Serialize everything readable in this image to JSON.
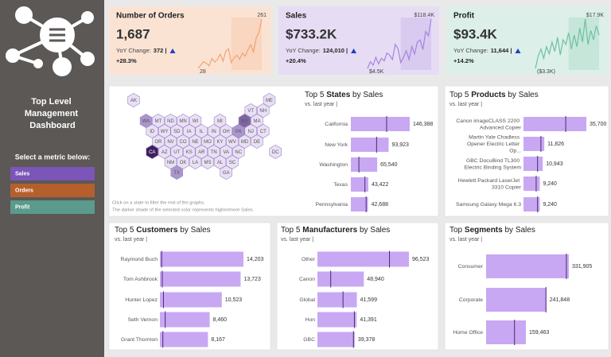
{
  "sidebar": {
    "title": "Top Level Management Dashboard",
    "prompt": "Select a metric below:",
    "buttons": [
      {
        "label": "Sales",
        "color": "#7b55b8"
      },
      {
        "label": "Orders",
        "color": "#b5602c"
      },
      {
        "label": "Profit",
        "color": "#5a9b8b"
      }
    ]
  },
  "kpis": [
    {
      "title": "Number of Orders",
      "value": "1,687",
      "yoy_label": "YoY Change:",
      "yoy_value": "372 |",
      "change": "+28.3%",
      "background": "#fbe3d4",
      "sparkline": {
        "type": "line",
        "color": "#f2a36f",
        "values": [
          28,
          45,
          60,
          52,
          40,
          75,
          58,
          70,
          95,
          62,
          110,
          120,
          55,
          78,
          90,
          70,
          100,
          85,
          115,
          140,
          105,
          170,
          200,
          261
        ]
      }
    },
    {
      "title": "Sales",
      "value": "$733.2K",
      "yoy_label": "YoY Change:",
      "yoy_value": "124,010 |",
      "change": "+20.4%",
      "background": "#e6dcf4",
      "sparkline": {
        "type": "line",
        "color": "#a684df",
        "values": [
          4500,
          20000,
          12000,
          30000,
          15000,
          28000,
          22000,
          40000,
          35000,
          25000,
          60000,
          50000,
          18000,
          30000,
          45000,
          25000,
          55000,
          38000,
          65000,
          70000,
          48000,
          90000,
          80000,
          118400
        ],
        "value_labels": [
          "$4.5K",
          null,
          null,
          null,
          null,
          null,
          null,
          null,
          null,
          null,
          null,
          null,
          null,
          null,
          null,
          null,
          null,
          null,
          null,
          null,
          null,
          null,
          null,
          "$118.4K"
        ]
      }
    },
    {
      "title": "Profit",
      "value": "$93.4K",
      "yoy_label": "YoY Change:",
      "yoy_value": "11,644 |",
      "change": "+14.2%",
      "background": "#dcefe8",
      "sparkline": {
        "type": "line",
        "color": "#6cc2a2",
        "values": [
          -3300,
          2000,
          5000,
          1000,
          6000,
          3000,
          8000,
          4000,
          10000,
          2500,
          9000,
          7000,
          12000,
          5000,
          11000,
          6000,
          14000,
          8000,
          17900,
          7000,
          13000,
          9000,
          15000,
          11000
        ],
        "value_labels": [
          "($3.3K)",
          null,
          null,
          null,
          null,
          null,
          null,
          null,
          null,
          null,
          null,
          null,
          null,
          null,
          null,
          null,
          null,
          null,
          "$17.9K",
          null,
          null,
          null,
          null,
          null
        ]
      }
    }
  ],
  "map": {
    "rows": [
      [
        "AK",
        null,
        null,
        null,
        null,
        null,
        null,
        null,
        null,
        null,
        null,
        "ME"
      ],
      [
        null,
        null,
        null,
        null,
        null,
        null,
        null,
        null,
        null,
        "VT",
        "NH"
      ],
      [
        null,
        "WA",
        "MT",
        "ND",
        "MN",
        "WI",
        null,
        "MI",
        null,
        "NY",
        "MA"
      ],
      [
        null,
        "ID",
        "WY",
        "SD",
        "IA",
        "IL",
        "IN",
        "OH",
        "PA",
        "NJ",
        "CT"
      ],
      [
        null,
        null,
        "OR",
        "NV",
        "CO",
        "NE",
        "MO",
        "KY",
        "WV",
        "MD",
        "DE"
      ],
      [
        null,
        "CA",
        "AZ",
        "UT",
        "KS",
        "AR",
        "TN",
        "VA",
        "NC",
        null,
        null,
        "DC"
      ],
      [
        null,
        null,
        null,
        "NM",
        "OK",
        "LA",
        "MS",
        "AL",
        "SC"
      ],
      [
        null,
        null,
        null,
        "TX",
        null,
        null,
        null,
        "GA"
      ]
    ],
    "colors": {
      "default": "#e9e0f5",
      "CA": "#3e1f5d",
      "NY": "#7e66a1",
      "WA": "#ab96cb",
      "TX": "#ab96cb",
      "PA": "#ab96cb"
    },
    "notes": [
      "Click on a state to filter the rest of the graphs.",
      "The darker shade of the selected color represents higher/more Sales."
    ]
  },
  "chart_data": [
    {
      "type": "bar",
      "title_parts": [
        "Top 5",
        "States",
        "by Sales"
      ],
      "subtitle": "vs. last year |",
      "color": "#c8a8f3",
      "marker_color": "#4a2a6a",
      "categories": [
        "California",
        "New York",
        "Washington",
        "Texas",
        "Pennsylvania"
      ],
      "values": [
        146388,
        93923,
        65540,
        43422,
        42688
      ],
      "value_labels": [
        "146,388",
        "93,923",
        "65,540",
        "43,422",
        "42,688"
      ],
      "last_year": [
        89000,
        64000,
        20000,
        35000,
        38000
      ]
    },
    {
      "type": "bar",
      "title_parts": [
        "Top 5",
        "Products",
        "by Sales"
      ],
      "subtitle": "vs. last year |",
      "color": "#c8a8f3",
      "marker_color": "#4a2a6a",
      "categories": [
        "Canon imageCLASS 2200 Advanced Copier",
        "Martin Yale Chadless Opener Electric Letter Op...",
        "GBC DocuBind TL300 Electric Binding System",
        "Hewlett Packard LaserJet 3310 Copier",
        "Samsung Galaxy Mega 6.3"
      ],
      "values": [
        35700,
        11826,
        10943,
        9240,
        9240
      ],
      "value_labels": [
        "35,700",
        "11,826",
        "10,943",
        "9,240",
        "9,240"
      ],
      "last_year": [
        24000,
        9900,
        8000,
        7200,
        8000
      ]
    },
    {
      "type": "bar",
      "title_parts": [
        "Top 5",
        "Customers",
        "by Sales"
      ],
      "subtitle": "vs. last year |",
      "color": "#c8a8f3",
      "marker_color": "#4a2a6a",
      "categories": [
        "Raymond Buch",
        "Tom Ashbrook",
        "Hunter Lopez",
        "Seth Vernon",
        "Grant Thornton"
      ],
      "values": [
        14203,
        13723,
        10523,
        8460,
        8167
      ],
      "value_labels": [
        "14,203",
        "13,723",
        "10,523",
        "8,460",
        "8,167"
      ],
      "last_year": [
        300,
        400,
        600,
        900,
        500
      ]
    },
    {
      "type": "bar",
      "title_parts": [
        "Top 5",
        "Manufacturers",
        "by Sales"
      ],
      "subtitle": "vs. last year |",
      "color": "#c8a8f3",
      "marker_color": "#4a2a6a",
      "categories": [
        "Other",
        "Canon",
        "Global",
        "Hon",
        "GBC"
      ],
      "values": [
        96523,
        48940,
        41599,
        41391,
        39378
      ],
      "value_labels": [
        "96,523",
        "48,940",
        "41,599",
        "41,391",
        "39,378"
      ],
      "last_year": [
        76000,
        14000,
        27000,
        39000,
        38000
      ]
    },
    {
      "type": "bar",
      "title_parts": [
        "Top",
        "Segments",
        "by Sales"
      ],
      "subtitle": "vs. last year |",
      "color": "#c8a8f3",
      "marker_color": "#4a2a6a",
      "categories": [
        "Consumer",
        "Corporate",
        "Home Office"
      ],
      "values": [
        331905,
        241848,
        159463
      ],
      "value_labels": [
        "331,905",
        "241,848",
        "159,463"
      ],
      "last_year": [
        322000,
        240000,
        114000
      ]
    }
  ]
}
